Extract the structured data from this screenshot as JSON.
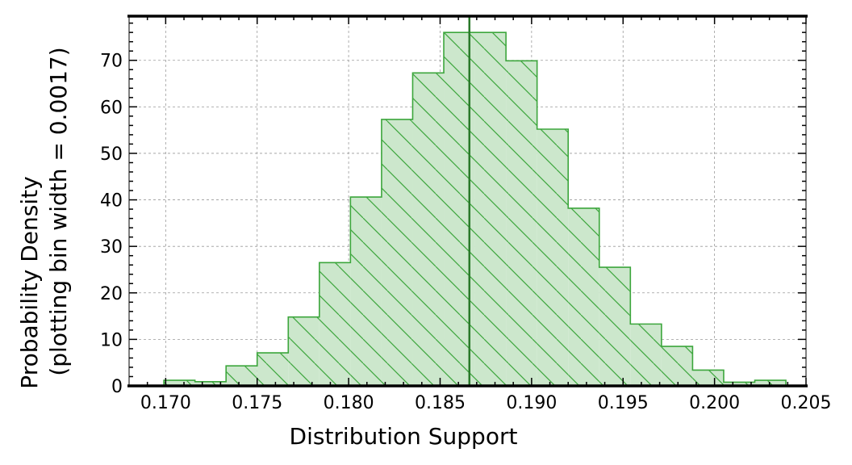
{
  "chart_data": {
    "type": "histogram",
    "xlabel": "Distribution Support",
    "ylabel_line1": "Probability Density",
    "ylabel_line2": "(plotting bin width = 0.0017)",
    "xlim": [
      0.168,
      0.205
    ],
    "ylim": [
      0,
      79.5
    ],
    "grid": true,
    "x_ticks": [
      {
        "value": 0.17,
        "label": "0.170"
      },
      {
        "value": 0.175,
        "label": "0.175"
      },
      {
        "value": 0.18,
        "label": "0.180"
      },
      {
        "value": 0.185,
        "label": "0.185"
      },
      {
        "value": 0.19,
        "label": "0.190"
      },
      {
        "value": 0.195,
        "label": "0.195"
      },
      {
        "value": 0.2,
        "label": "0.200"
      },
      {
        "value": 0.205,
        "label": "0.205"
      }
    ],
    "y_ticks": [
      {
        "value": 0,
        "label": "0"
      },
      {
        "value": 10,
        "label": "10"
      },
      {
        "value": 20,
        "label": "20"
      },
      {
        "value": 30,
        "label": "30"
      },
      {
        "value": 40,
        "label": "40"
      },
      {
        "value": 50,
        "label": "50"
      },
      {
        "value": 60,
        "label": "60"
      },
      {
        "value": 70,
        "label": "70"
      }
    ],
    "bin_edges": [
      0.1699,
      0.1716,
      0.1733,
      0.175,
      0.1767,
      0.1784,
      0.1801,
      0.1818,
      0.1835,
      0.1852,
      0.1869,
      0.1886,
      0.1903,
      0.192,
      0.1937,
      0.1954,
      0.1971,
      0.1988,
      0.2005,
      0.2022,
      0.2039
    ],
    "densities": [
      1.2,
      0.9,
      4.3,
      7.1,
      14.8,
      26.5,
      40.6,
      57.3,
      67.3,
      76.0,
      76.0,
      69.9,
      55.2,
      38.2,
      25.5,
      13.3,
      8.5,
      3.4,
      0.8,
      1.2
    ],
    "mean_line": 0.1866,
    "colors": {
      "fill": "#cce7cc",
      "edge": "#3ca63c",
      "hatch": "#3ca63c",
      "mean_line": "#2a7a2a",
      "grid": "#9a9a9a",
      "axis": "#000000"
    }
  }
}
